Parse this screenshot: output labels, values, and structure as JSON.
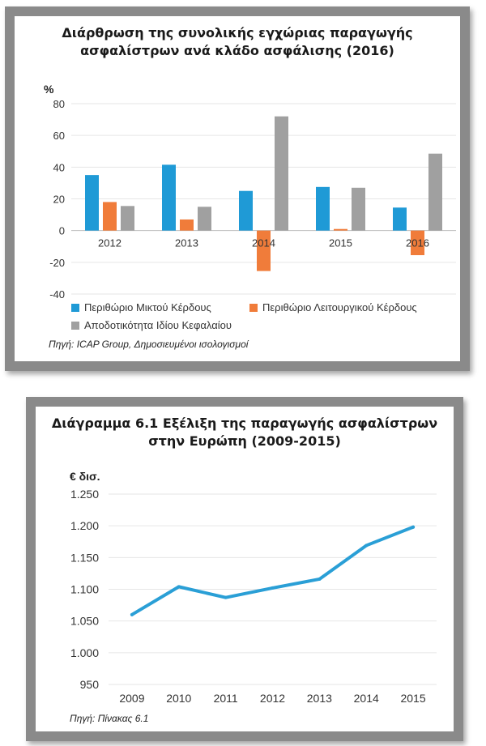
{
  "chart1": {
    "title": "Διάρθρωση της συνολικής εγχώριας παραγωγής\nασφαλίστρων ανά κλάδο ασφάλισης (2016)",
    "unit": "%",
    "source": "Πηγή: ICAP Group, Δημοσιευμένοι ισολογισμοί"
  },
  "chart2": {
    "title": "Διάγραμμα 6.1 Εξέλιξη της παραγωγής ασφαλίστρων\nστην Ευρώπη (2009-2015)",
    "unit": "€ δισ.",
    "source": "Πηγή: Πίνακας 6.1"
  },
  "chart_data": [
    {
      "type": "bar",
      "title": "Διάρθρωση της συνολικής εγχώριας παραγωγής ασφαλίστρων ανά κλάδο ασφάλισης (2016)",
      "ylabel": "%",
      "categories": [
        "2012",
        "2013",
        "2014",
        "2015",
        "2016"
      ],
      "series": [
        {
          "name": "Περιθώριο Μικτού Κέρδους",
          "color": "#1f9ad6",
          "values": [
            35,
            41.5,
            25,
            27.5,
            14.5
          ]
        },
        {
          "name": "Περιθώριο Λειτουργικού Κέρδους",
          "color": "#f07c3a",
          "values": [
            18,
            7,
            -25.5,
            1,
            -15.5
          ]
        },
        {
          "name": "Αποδοτικότητα Ιδίου Κεφαλαίου",
          "color": "#a0a0a0",
          "values": [
            15.5,
            15,
            72,
            27,
            48.5
          ]
        }
      ],
      "ylim": [
        -40,
        80
      ],
      "yticks": [
        -40,
        -20,
        0,
        20,
        40,
        60,
        80
      ],
      "grid": true,
      "legend": "bottom"
    },
    {
      "type": "line",
      "title": "Διάγραμμα 6.1 Εξέλιξη της παραγωγής ασφαλίστρων στην Ευρώπη (2009-2015)",
      "ylabel": "€ δισ.",
      "x": [
        "2009",
        "2010",
        "2011",
        "2012",
        "2013",
        "2014",
        "2015"
      ],
      "series": [
        {
          "name": "",
          "color": "#2a9fd6",
          "values": [
            1060,
            1104,
            1087,
            1102,
            1116,
            1169,
            1198
          ]
        }
      ],
      "ylim": [
        950,
        1250
      ],
      "yticks": [
        "950",
        "1.000",
        "1.050",
        "1.100",
        "1.150",
        "1.200",
        "1.250"
      ],
      "grid": true,
      "legend": "none"
    }
  ]
}
